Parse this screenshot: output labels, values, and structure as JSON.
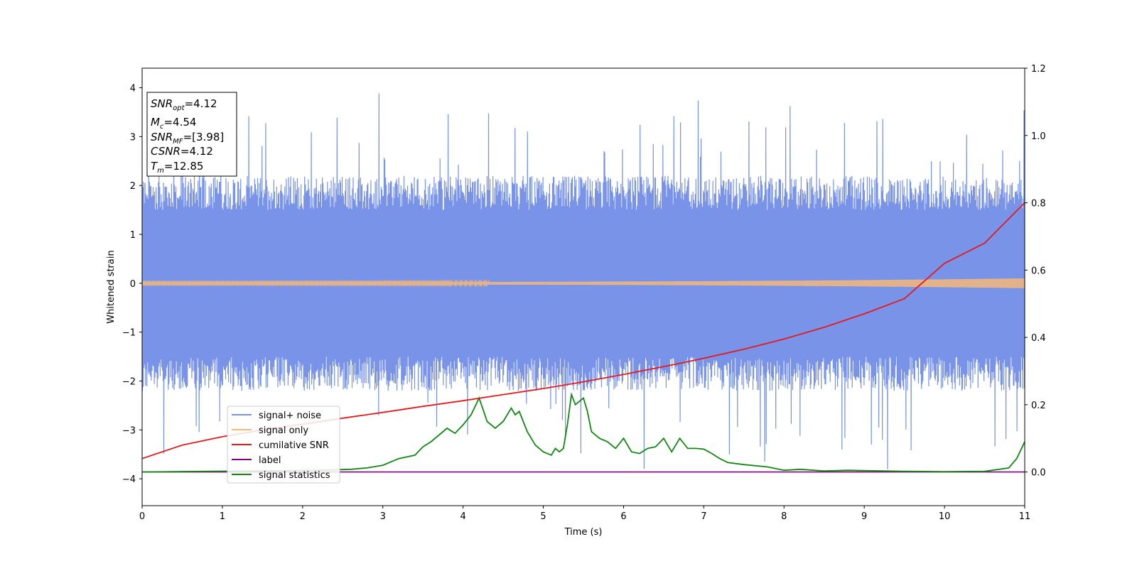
{
  "chart_data": {
    "type": "line",
    "xlabel": "Time (s)",
    "ylabel": "Whitened strain",
    "xlim": [
      0,
      11
    ],
    "ylim": [
      -4.55,
      4.4
    ],
    "y2lim": [
      -0.1,
      1.2
    ],
    "x_ticks": [
      "0",
      "1",
      "2",
      "3",
      "4",
      "5",
      "6",
      "7",
      "8",
      "9",
      "10",
      "11"
    ],
    "y_ticks": [
      "−4",
      "−3",
      "−2",
      "−1",
      "0",
      "1",
      "2",
      "3",
      "4"
    ],
    "y2_ticks": [
      "0.0",
      "0.2",
      "0.4",
      "0.6",
      "0.8",
      "1.0",
      "1.2"
    ],
    "grid": false,
    "legend_position": "lower-left",
    "annotation": {
      "snr_opt": {
        "main": "SNR",
        "sub": "opt",
        "value": "=4.12"
      },
      "mc": {
        "main": "M",
        "sub": "c",
        "value": "=4.54"
      },
      "snr_mf": {
        "main": "SNR",
        "sub": "MF",
        "value": "=[3.98]"
      },
      "csnr": {
        "main": "CSNR",
        "value": "=4.12"
      },
      "tm": {
        "main": "T",
        "sub": "m",
        "value": "=12.85"
      }
    },
    "series": [
      {
        "name": "signal+ noise",
        "color": "#7893e8",
        "axis": "left",
        "envelope_upper": [
          2.1,
          2.3
        ],
        "envelope_lower": [
          -2.1,
          -2.3
        ],
        "peak_max": 4.0,
        "peak_min": -4.15
      },
      {
        "name": "signal only",
        "color": "#f5b77a",
        "axis": "left",
        "amplitude_start": 0.02,
        "amplitude_end": 0.1
      },
      {
        "name": "cumilative SNR",
        "color": "#e41a1c",
        "axis": "right",
        "x": [
          0,
          0.5,
          1,
          1.5,
          2,
          2.5,
          3,
          3.5,
          4,
          4.5,
          5,
          5.5,
          6,
          6.5,
          7,
          7.5,
          8,
          8.5,
          9,
          9.5,
          10,
          10.5,
          11
        ],
        "y": [
          0.04,
          0.08,
          0.105,
          0.125,
          0.142,
          0.16,
          0.177,
          0.195,
          0.212,
          0.23,
          0.248,
          0.268,
          0.29,
          0.313,
          0.338,
          0.365,
          0.395,
          0.43,
          0.47,
          0.515,
          0.62,
          0.68,
          0.8
        ]
      },
      {
        "name": "label",
        "color": "#800080",
        "axis": "right",
        "x": [
          0,
          11
        ],
        "y": [
          0,
          0
        ]
      },
      {
        "name": "signal statistics",
        "color": "#118811",
        "axis": "right",
        "x": [
          0,
          2.2,
          2.6,
          2.8,
          3.0,
          3.2,
          3.4,
          3.5,
          3.6,
          3.7,
          3.8,
          3.9,
          4.0,
          4.1,
          4.2,
          4.25,
          4.3,
          4.4,
          4.5,
          4.6,
          4.65,
          4.7,
          4.75,
          4.8,
          4.9,
          5.0,
          5.1,
          5.15,
          5.2,
          5.25,
          5.3,
          5.35,
          5.4,
          5.45,
          5.5,
          5.55,
          5.6,
          5.7,
          5.8,
          5.9,
          6.0,
          6.1,
          6.2,
          6.3,
          6.4,
          6.5,
          6.6,
          6.7,
          6.8,
          6.9,
          7.0,
          7.1,
          7.2,
          7.3,
          7.5,
          7.8,
          8.0,
          8.2,
          8.5,
          8.8,
          9.0,
          9.5,
          10.0,
          10.5,
          10.8,
          10.9,
          11.0
        ],
        "y": [
          0.0,
          0.005,
          0.008,
          0.012,
          0.02,
          0.04,
          0.05,
          0.075,
          0.09,
          0.11,
          0.13,
          0.115,
          0.14,
          0.17,
          0.22,
          0.185,
          0.15,
          0.13,
          0.15,
          0.19,
          0.17,
          0.18,
          0.15,
          0.12,
          0.08,
          0.06,
          0.05,
          0.07,
          0.06,
          0.07,
          0.14,
          0.23,
          0.2,
          0.21,
          0.22,
          0.18,
          0.12,
          0.1,
          0.09,
          0.07,
          0.1,
          0.06,
          0.055,
          0.07,
          0.075,
          0.1,
          0.06,
          0.1,
          0.07,
          0.07,
          0.068,
          0.055,
          0.04,
          0.028,
          0.022,
          0.015,
          0.005,
          0.008,
          0.003,
          0.005,
          0.004,
          0.002,
          0.001,
          0.002,
          0.012,
          0.04,
          0.09
        ]
      }
    ]
  }
}
